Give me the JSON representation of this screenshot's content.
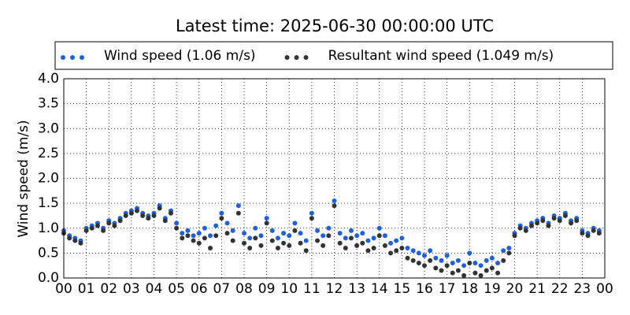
{
  "chart_data": {
    "type": "scatter",
    "title": "Latest time: 2025-06-30 00:00:00 UTC",
    "y_label": "Wind speed (m/s)",
    "grid": true,
    "legend": "top",
    "xlim": [
      0,
      24
    ],
    "xticks": [
      {
        "value": 0,
        "label": "00"
      },
      {
        "value": 1,
        "label": "01"
      },
      {
        "value": 2,
        "label": "02"
      },
      {
        "value": 3,
        "label": "03"
      },
      {
        "value": 4,
        "label": "04"
      },
      {
        "value": 5,
        "label": "05"
      },
      {
        "value": 6,
        "label": "06"
      },
      {
        "value": 7,
        "label": "07"
      },
      {
        "value": 8,
        "label": "08"
      },
      {
        "value": 9,
        "label": "09"
      },
      {
        "value": 10,
        "label": "10"
      },
      {
        "value": 11,
        "label": "11"
      },
      {
        "value": 12,
        "label": "12"
      },
      {
        "value": 13,
        "label": "13"
      },
      {
        "value": 14,
        "label": "14"
      },
      {
        "value": 15,
        "label": "15"
      },
      {
        "value": 16,
        "label": "16"
      },
      {
        "value": 17,
        "label": "17"
      },
      {
        "value": 18,
        "label": "18"
      },
      {
        "value": 19,
        "label": "19"
      },
      {
        "value": 20,
        "label": "20"
      },
      {
        "value": 21,
        "label": "21"
      },
      {
        "value": 22,
        "label": "22"
      },
      {
        "value": 23,
        "label": "23"
      },
      {
        "value": 24,
        "label": "00"
      }
    ],
    "ylim": [
      0,
      4
    ],
    "yticks": [
      {
        "value": 0,
        "label": "0.0"
      },
      {
        "value": 0.5,
        "label": "0.5"
      },
      {
        "value": 1,
        "label": "1.0"
      },
      {
        "value": 1.5,
        "label": "1.5"
      },
      {
        "value": 2,
        "label": "2.0"
      },
      {
        "value": 2.5,
        "label": "2.5"
      },
      {
        "value": 3,
        "label": "3.0"
      },
      {
        "value": 3.5,
        "label": "3.5"
      },
      {
        "value": 4,
        "label": "4.0"
      }
    ],
    "x": [
      0,
      0.25,
      0.5,
      0.75,
      1,
      1.25,
      1.5,
      1.75,
      2,
      2.25,
      2.5,
      2.75,
      3,
      3.25,
      3.5,
      3.75,
      4,
      4.25,
      4.5,
      4.75,
      5,
      5.25,
      5.5,
      5.75,
      6,
      6.25,
      6.5,
      6.75,
      7,
      7.25,
      7.5,
      7.75,
      8,
      8.25,
      8.5,
      8.75,
      9,
      9.25,
      9.5,
      9.75,
      10,
      10.25,
      10.5,
      10.75,
      11,
      11.25,
      11.5,
      11.75,
      12,
      12.25,
      12.5,
      12.75,
      13,
      13.25,
      13.5,
      13.75,
      14,
      14.25,
      14.5,
      14.75,
      15,
      15.25,
      15.5,
      15.75,
      16,
      16.25,
      16.5,
      16.75,
      17,
      17.25,
      17.5,
      17.75,
      18,
      18.25,
      18.5,
      18.75,
      19,
      19.25,
      19.5,
      19.75,
      20,
      20.25,
      20.5,
      20.75,
      21,
      21.25,
      21.5,
      21.75,
      22,
      22.25,
      22.5,
      22.75,
      23,
      23.25,
      23.5,
      23.75
    ],
    "series": [
      {
        "name": "Wind speed (1.06 m/s)",
        "color": "#1f5fe0",
        "values": [
          0.95,
          0.85,
          0.8,
          0.75,
          1.0,
          1.05,
          1.1,
          1.0,
          1.15,
          1.1,
          1.2,
          1.3,
          1.35,
          1.4,
          1.3,
          1.25,
          1.3,
          1.45,
          1.2,
          1.35,
          1.1,
          0.9,
          0.95,
          0.85,
          0.9,
          1.0,
          0.85,
          1.05,
          1.3,
          1.1,
          0.95,
          1.45,
          0.9,
          0.8,
          1.0,
          0.85,
          1.2,
          0.95,
          0.8,
          0.9,
          0.85,
          1.1,
          0.9,
          0.75,
          1.3,
          0.95,
          0.85,
          1.0,
          1.55,
          0.9,
          0.8,
          0.95,
          0.85,
          0.9,
          0.75,
          0.8,
          1.0,
          0.85,
          0.7,
          0.75,
          0.8,
          0.6,
          0.55,
          0.5,
          0.45,
          0.55,
          0.4,
          0.35,
          0.45,
          0.3,
          0.35,
          0.25,
          0.5,
          0.3,
          0.25,
          0.35,
          0.4,
          0.3,
          0.55,
          0.6,
          0.9,
          1.05,
          1.0,
          1.1,
          1.15,
          1.2,
          1.1,
          1.25,
          1.2,
          1.3,
          1.15,
          1.2,
          0.95,
          0.9,
          1.0,
          0.95
        ]
      },
      {
        "name": "Resultant wind speed (1.049 m/s)",
        "color": "#333333",
        "values": [
          0.9,
          0.8,
          0.75,
          0.7,
          0.95,
          1.0,
          1.05,
          0.95,
          1.1,
          1.05,
          1.15,
          1.25,
          1.3,
          1.35,
          1.25,
          1.2,
          1.25,
          1.4,
          1.15,
          1.3,
          1.0,
          0.8,
          0.85,
          0.75,
          0.7,
          0.8,
          0.6,
          0.85,
          1.2,
          0.9,
          0.75,
          1.3,
          0.7,
          0.6,
          0.8,
          0.65,
          1.1,
          0.75,
          0.6,
          0.7,
          0.65,
          0.95,
          0.7,
          0.55,
          1.2,
          0.75,
          0.65,
          0.85,
          1.45,
          0.7,
          0.6,
          0.8,
          0.65,
          0.7,
          0.55,
          0.6,
          0.85,
          0.65,
          0.5,
          0.55,
          0.6,
          0.4,
          0.35,
          0.3,
          0.25,
          0.35,
          0.2,
          0.15,
          0.25,
          0.1,
          0.15,
          0.05,
          0.3,
          0.1,
          0.05,
          0.15,
          0.2,
          0.1,
          0.35,
          0.5,
          0.85,
          1.0,
          0.95,
          1.05,
          1.1,
          1.15,
          1.05,
          1.2,
          1.15,
          1.25,
          1.1,
          1.15,
          0.9,
          0.85,
          0.95,
          0.9
        ]
      }
    ]
  }
}
